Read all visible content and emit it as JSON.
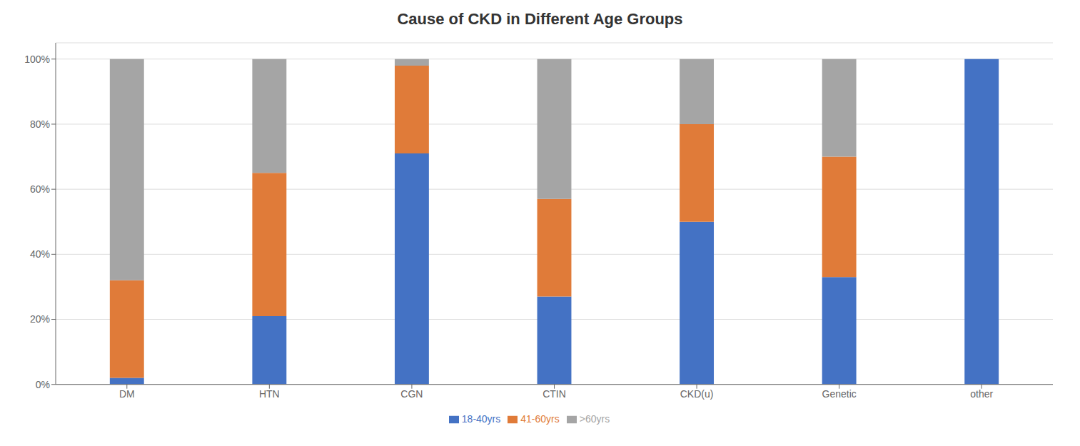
{
  "chart_data": {
    "type": "bar",
    "title": "Cause of CKD in Different Age Groups",
    "categories": [
      "DM",
      "HTN",
      "CGN",
      "CTIN",
      "CKD(u)",
      "Genetic",
      "other"
    ],
    "series": [
      {
        "name": "18-40yrs",
        "color": "#4472C4",
        "values": [
          2,
          21,
          71,
          27,
          50,
          33,
          100
        ]
      },
      {
        "name": "41-60yrs",
        "color": "#E07B39",
        "values": [
          30,
          44,
          27,
          30,
          30,
          37,
          0
        ]
      },
      {
        "name": ">60yrs",
        "color": "#A5A5A5",
        "values": [
          68,
          35,
          2,
          43,
          20,
          30,
          0
        ]
      }
    ],
    "stacked": true,
    "ylim": [
      0,
      105
    ],
    "yticks": [
      {
        "value": 0,
        "label": "0%"
      },
      {
        "value": 20,
        "label": "20%"
      },
      {
        "value": 40,
        "label": "40%"
      },
      {
        "value": 60,
        "label": "60%"
      },
      {
        "value": 80,
        "label": "80%"
      },
      {
        "value": 100,
        "label": "100%"
      }
    ],
    "grid": true,
    "legend": "bottom"
  }
}
